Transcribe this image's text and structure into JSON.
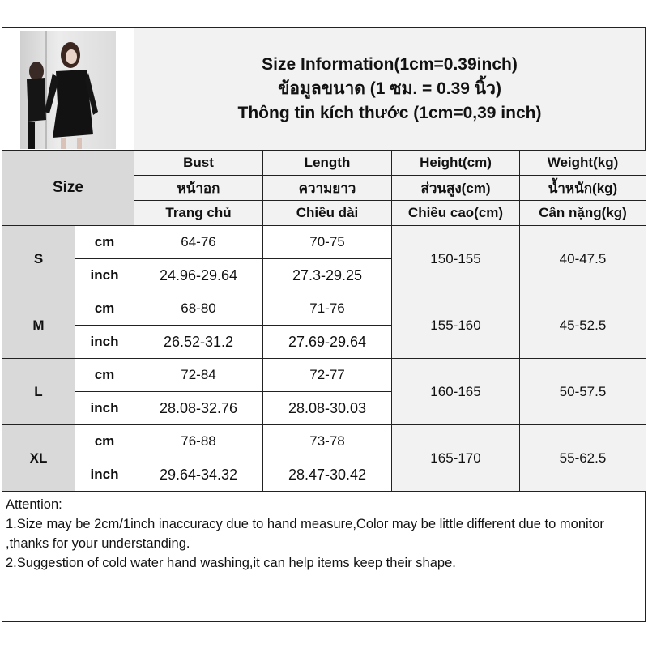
{
  "title": {
    "line1": "Size Information(1cm=0.39inch)",
    "line2": "ข้อมูลขนาด (1 ซม. = 0.39 นิ้ว)",
    "line3": "Thông tin kích thước (1cm=0,39 inch)"
  },
  "size_header": "Size",
  "columns": [
    {
      "en": "Bust",
      "th": "หน้าอก",
      "vi": "Trang chủ"
    },
    {
      "en": "Length",
      "th": "ความยาว",
      "vi": "Chiều dài"
    },
    {
      "en": "Height(cm)",
      "th": "ส่วนสูง(cm)",
      "vi": "Chiều cao(cm)"
    },
    {
      "en": "Weight(kg)",
      "th": "น้ำหนัก(kg)",
      "vi": "Cân nặng(kg)"
    }
  ],
  "unit_cm": "cm",
  "unit_inch": "inch",
  "rows": [
    {
      "size": "S",
      "bust_cm": "64-76",
      "length_cm": "70-75",
      "bust_inch": "24.96-29.64",
      "length_inch": "27.3-29.25",
      "height": "150-155",
      "weight": "40-47.5"
    },
    {
      "size": "M",
      "bust_cm": "68-80",
      "length_cm": "71-76",
      "bust_inch": "26.52-31.2",
      "length_inch": "27.69-29.64",
      "height": "155-160",
      "weight": "45-52.5"
    },
    {
      "size": "L",
      "bust_cm": "72-84",
      "length_cm": "72-77",
      "bust_inch": "28.08-32.76",
      "length_inch": "28.08-30.03",
      "height": "160-165",
      "weight": "50-57.5"
    },
    {
      "size": "XL",
      "bust_cm": "76-88",
      "length_cm": "73-78",
      "bust_inch": "29.64-34.32",
      "length_inch": "28.47-30.42",
      "height": "165-170",
      "weight": "55-62.5"
    }
  ],
  "attention": {
    "heading": "Attention:",
    "note1": "1.Size may be 2cm/1inch inaccuracy due to hand measure,Color may be little different due to monitor ,thanks for your understanding.",
    "note2": "2.Suggestion of cold water hand washing,it can help items keep their shape."
  }
}
